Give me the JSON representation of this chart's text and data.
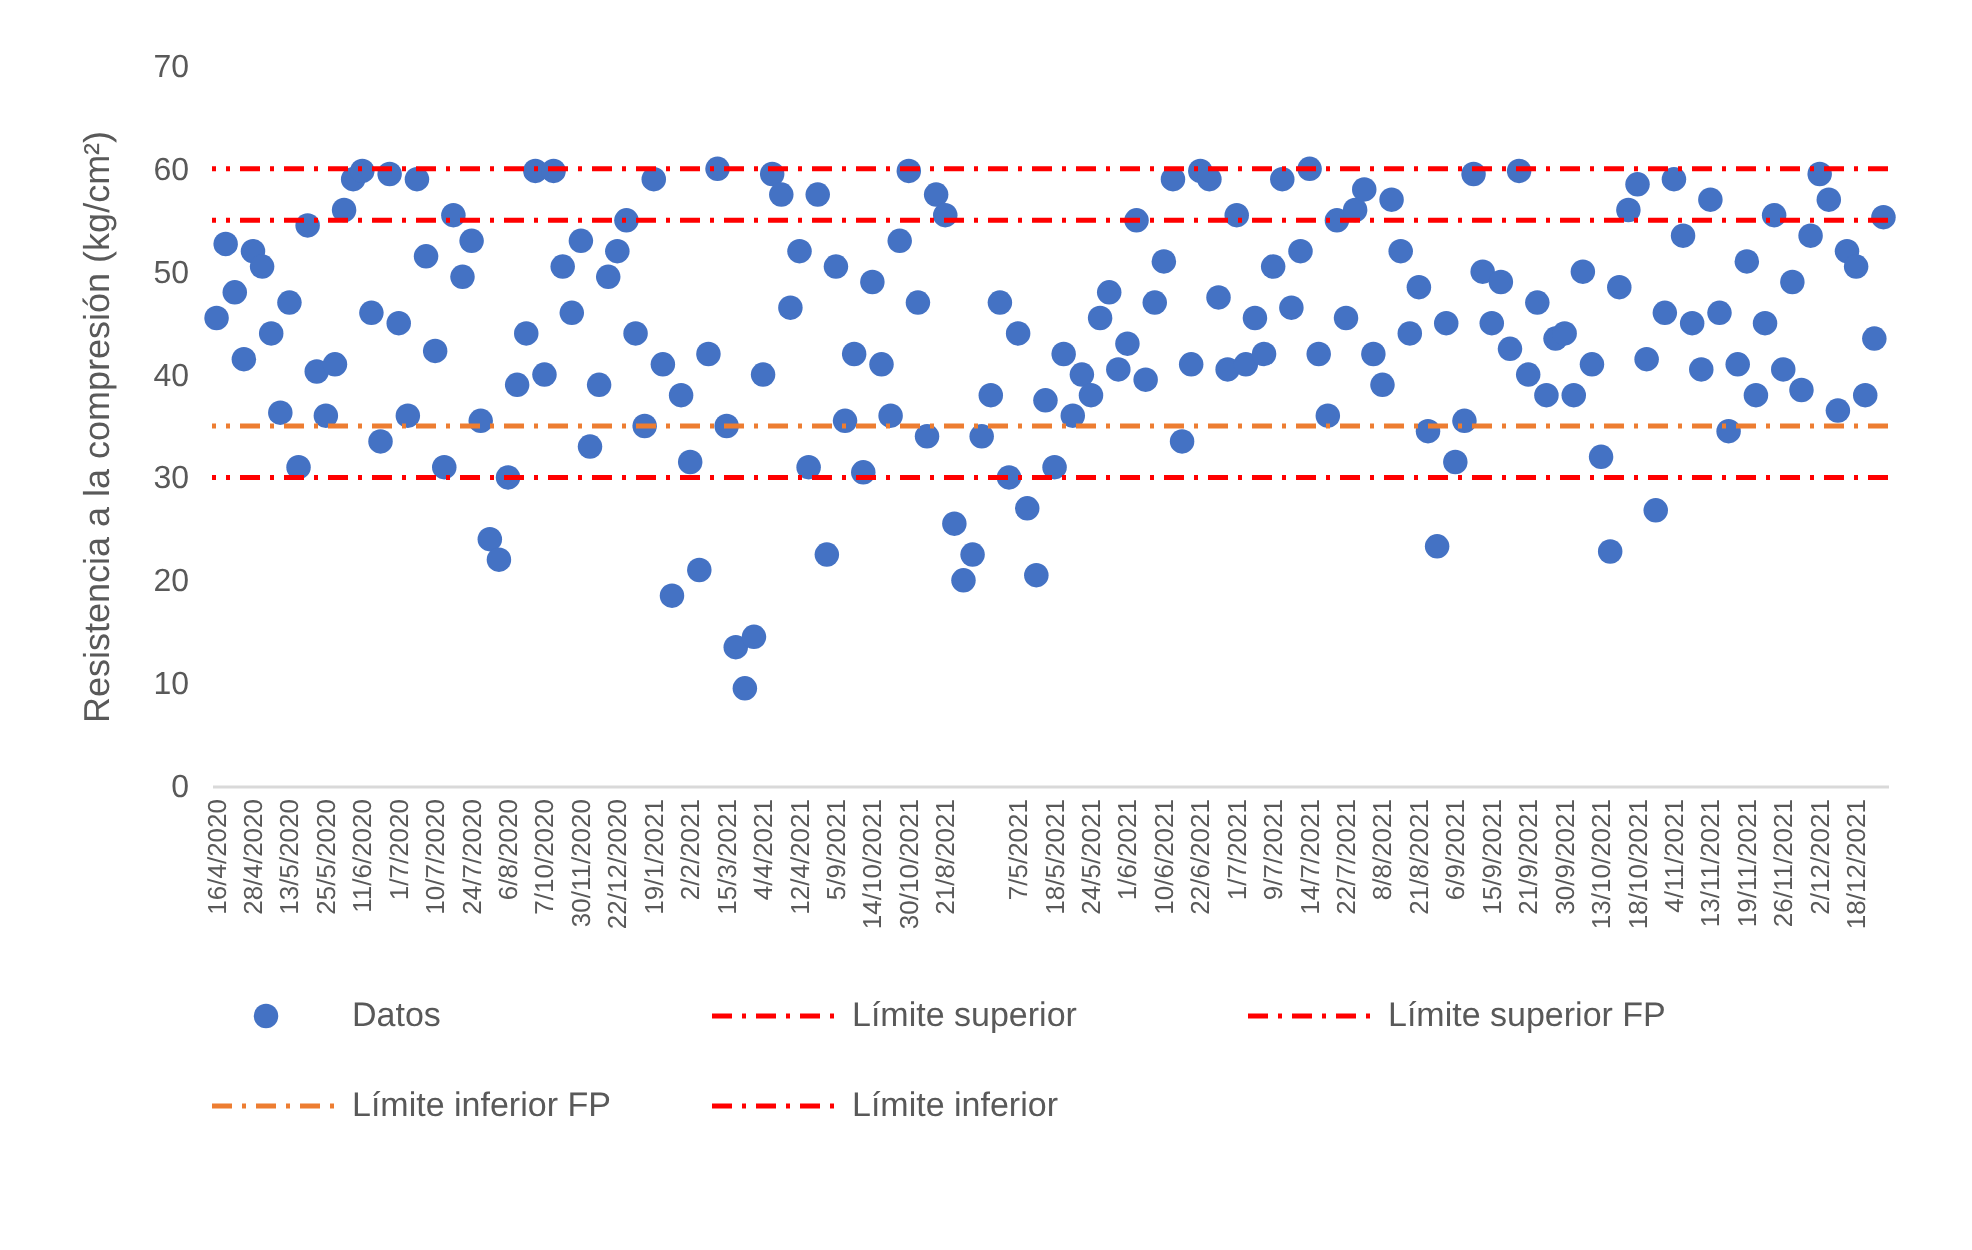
{
  "chart_data": {
    "type": "scatter",
    "ylabel": "Resistencia a la compresión (kg/cm²)",
    "categories": [
      "16/4/2020",
      null,
      null,
      null,
      "28/4/2020",
      null,
      null,
      null,
      "13/5/2020",
      null,
      null,
      null,
      "25/5/2020",
      null,
      null,
      null,
      "11/6/2020",
      null,
      null,
      null,
      "1/7/2020",
      null,
      null,
      null,
      "10/7/2020",
      null,
      null,
      null,
      "24/7/2020",
      null,
      null,
      null,
      "6/8/2020",
      null,
      null,
      null,
      "7/10/2020",
      null,
      null,
      null,
      "30/11/2020",
      null,
      null,
      null,
      "22/12/2020",
      null,
      null,
      null,
      "19/1/2021",
      null,
      null,
      null,
      "2/2/2021",
      null,
      null,
      null,
      "15/3/2021",
      null,
      null,
      null,
      "4/4/2021",
      null,
      null,
      null,
      "12/4/2021",
      null,
      null,
      null,
      "5/9/2021",
      null,
      null,
      null,
      "14/10/2021",
      null,
      null,
      null,
      "30/10/2021",
      null,
      null,
      null,
      "21/8/2021",
      null,
      null,
      null,
      null,
      null,
      null,
      null,
      "7/5/2021",
      null,
      null,
      null,
      "18/5/2021",
      null,
      null,
      null,
      "24/5/2021",
      null,
      null,
      null,
      "1/6/2021",
      null,
      null,
      null,
      "10/6/2021",
      null,
      null,
      null,
      "22/6/2021",
      null,
      null,
      null,
      "1/7/2021",
      null,
      null,
      null,
      "9/7/2021",
      null,
      null,
      null,
      "14/7/2021",
      null,
      null,
      null,
      "22/7/2021",
      null,
      null,
      null,
      "8/8/2021",
      null,
      null,
      null,
      "21/8/2021",
      null,
      null,
      null,
      "6/9/2021",
      null,
      null,
      null,
      "15/9/2021",
      null,
      null,
      null,
      "21/9/2021",
      null,
      null,
      null,
      "30/9/2021",
      null,
      null,
      null,
      "13/10/2021",
      null,
      null,
      null,
      "18/10/2021",
      null,
      null,
      null,
      "4/11/2021",
      null,
      null,
      null,
      "13/11/2021",
      null,
      null,
      null,
      "19/11/2021",
      null,
      null,
      null,
      "26/11/2021",
      null,
      null,
      null,
      "2/12/2021",
      null,
      null,
      null,
      "18/12/2021",
      null,
      null,
      null
    ],
    "series": [
      {
        "name": "Datos",
        "color": "#4472c4",
        "values": [
          45.5,
          52.7,
          48,
          41.5,
          52,
          50.5,
          44,
          36.3,
          47,
          31,
          54.5,
          40.3,
          36,
          41,
          56,
          59,
          59.8,
          46,
          33.5,
          59.5,
          45,
          36,
          59,
          51.5,
          42.3,
          31,
          55.5,
          49.5,
          53,
          35.5,
          24,
          22,
          30,
          39,
          44,
          59.8,
          40,
          59.8,
          50.5,
          46,
          53,
          33,
          39,
          49.5,
          52,
          55,
          44,
          35,
          59,
          41,
          18.5,
          38,
          31.5,
          21,
          42,
          60,
          35,
          13.5,
          9.5,
          14.5,
          40,
          59.5,
          57.5,
          46.5,
          52,
          31,
          57.5,
          22.5,
          50.5,
          35.5,
          42,
          30.5,
          49,
          41,
          36,
          53,
          59.8,
          47,
          34,
          57.5,
          55.5,
          25.5,
          20,
          22.5,
          34,
          38,
          47,
          30,
          44,
          27,
          20.5,
          37.5,
          31,
          42,
          36,
          40,
          38,
          45.5,
          48,
          40.5,
          43,
          55,
          39.5,
          47,
          51,
          59,
          33.5,
          41,
          59.8,
          59,
          47.5,
          40.5,
          55.5,
          41,
          45.5,
          42,
          50.5,
          59,
          46.5,
          52,
          60,
          42,
          36,
          55,
          45.5,
          56,
          58,
          42,
          39,
          57,
          52,
          44,
          48.5,
          34.5,
          23.3,
          45,
          31.5,
          35.5,
          59.5,
          50,
          45,
          49,
          42.5,
          59.8,
          40,
          47,
          38,
          43.5,
          44,
          38,
          50,
          41,
          32,
          22.8,
          48.5,
          56,
          58.5,
          41.5,
          26.8,
          46,
          59,
          53.5,
          45,
          40.5,
          57,
          46,
          34.5,
          41,
          51,
          38,
          45,
          55.5,
          40.5,
          49,
          38.5,
          53.5,
          59.5,
          57,
          36.5,
          52,
          50.5,
          38,
          43.5,
          55.3
        ]
      }
    ],
    "ref_lines": [
      {
        "axis": "y",
        "value": 60,
        "label": "Límite superior",
        "color": "#ff0000",
        "line_style": "dashed"
      },
      {
        "axis": "y",
        "value": 55,
        "label": "Límite superior FP",
        "color": "#ff0000",
        "line_style": "dashed"
      },
      {
        "axis": "y",
        "value": 35,
        "label": "Límite inferior FP",
        "color": "#ed7d31",
        "line_style": "dashed"
      },
      {
        "axis": "y",
        "value": 30,
        "label": "Límite inferior",
        "color": "#ff0000",
        "line_style": "dashed"
      }
    ],
    "ylim": [
      0,
      70
    ],
    "yticks": [
      0,
      10,
      20,
      30,
      40,
      50,
      60,
      70
    ],
    "marker": "circle",
    "legend": "bottom"
  }
}
